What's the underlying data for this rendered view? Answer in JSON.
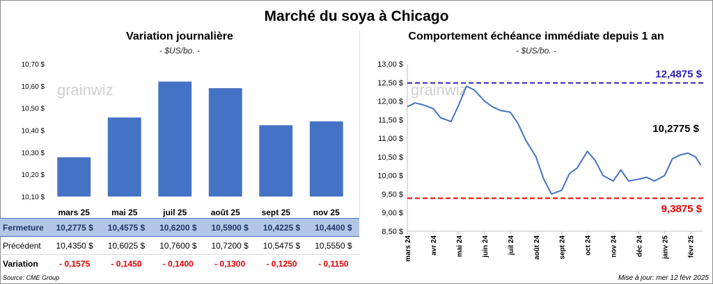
{
  "title": "Marché du soya à Chicago",
  "left": {
    "subtitle": "Variation journalière",
    "unit": "- $US/bo. -",
    "watermark": "grainwiz"
  },
  "right": {
    "subtitle": "Comportement échéance immédiate depuis 1 an",
    "unit": "- $US/bo. -",
    "watermark": "grainwiz",
    "high_label": "12,4875 $",
    "low_label": "9,3875 $",
    "last_label": "10,2775 $"
  },
  "table": {
    "rows": [
      {
        "label": "Fermeture",
        "values": [
          "10,2775 $",
          "10,4575 $",
          "10,6200 $",
          "10,5900 $",
          "10,4225 $",
          "10,4400 $"
        ]
      },
      {
        "label": "Précédent",
        "values": [
          "10,4350 $",
          "10,6025 $",
          "10,7600 $",
          "10,7200 $",
          "10,5475 $",
          "10,5550 $"
        ]
      },
      {
        "label": "Variation",
        "values": [
          "- 0,1575",
          "- 0,1450",
          "- 0,1400",
          "- 0,1300",
          "- 0,1250",
          "- 0,1150"
        ]
      }
    ]
  },
  "footer": {
    "source": "Source: CME Group",
    "updated": "Mise à jour: mer 12 févr 2025"
  },
  "colors": {
    "bar": "#4472c4",
    "line": "#4472c4",
    "high": "#2e1fb8",
    "low": "#e60000",
    "table_header": "#b4c6e7"
  },
  "chart_data": [
    {
      "type": "bar",
      "title": "Variation journalière",
      "categories": [
        "mars 25",
        "mai 25",
        "juil 25",
        "août 25",
        "sept 25",
        "nov 25"
      ],
      "values": [
        10.2775,
        10.4575,
        10.62,
        10.59,
        10.4225,
        10.44
      ],
      "ylim": [
        10.1,
        10.7
      ],
      "yticks": [
        "10,10 $",
        "10,20 $",
        "10,30 $",
        "10,40 $",
        "10,50 $",
        "10,60 $",
        "10,70 $"
      ],
      "grid": false
    },
    {
      "type": "line",
      "title": "Comportement échéance immédiate depuis 1 an",
      "xlabels": [
        "mars 24",
        "avr 24",
        "mai 24",
        "juin 24",
        "juil 24",
        "août 24",
        "sept 24",
        "oct 24",
        "nov 24",
        "déc 24",
        "janv 25",
        "févr 25"
      ],
      "ylim": [
        8.5,
        13.0
      ],
      "yticks": [
        "8,50 $",
        "9,00 $",
        "9,50 $",
        "10,00 $",
        "10,50 $",
        "11,00 $",
        "11,50 $",
        "12,00 $",
        "12,50 $",
        "13,00 $"
      ],
      "hlines": [
        {
          "value": 12.4875,
          "label": "12,4875 $"
        },
        {
          "value": 9.3875,
          "label": "9,3875 $"
        }
      ],
      "x": [
        0,
        0.3,
        0.6,
        1.0,
        1.3,
        1.7,
        2.0,
        2.3,
        2.6,
        3.0,
        3.3,
        3.6,
        4.0,
        4.3,
        4.6,
        5.0,
        5.3,
        5.6,
        6.0,
        6.3,
        6.6,
        7.0,
        7.3,
        7.6,
        8.0,
        8.3,
        8.6,
        9.0,
        9.3,
        9.6,
        10.0,
        10.3,
        10.6,
        10.9,
        11.2,
        11.4
      ],
      "values": [
        11.85,
        11.95,
        11.9,
        11.8,
        11.55,
        11.45,
        11.9,
        12.4,
        12.3,
        12.0,
        11.85,
        11.75,
        11.7,
        11.4,
        10.95,
        10.5,
        9.9,
        9.5,
        9.6,
        10.05,
        10.2,
        10.65,
        10.4,
        10.0,
        9.85,
        10.15,
        9.85,
        9.9,
        9.95,
        9.85,
        10.0,
        10.45,
        10.55,
        10.6,
        10.5,
        10.2775
      ]
    }
  ]
}
